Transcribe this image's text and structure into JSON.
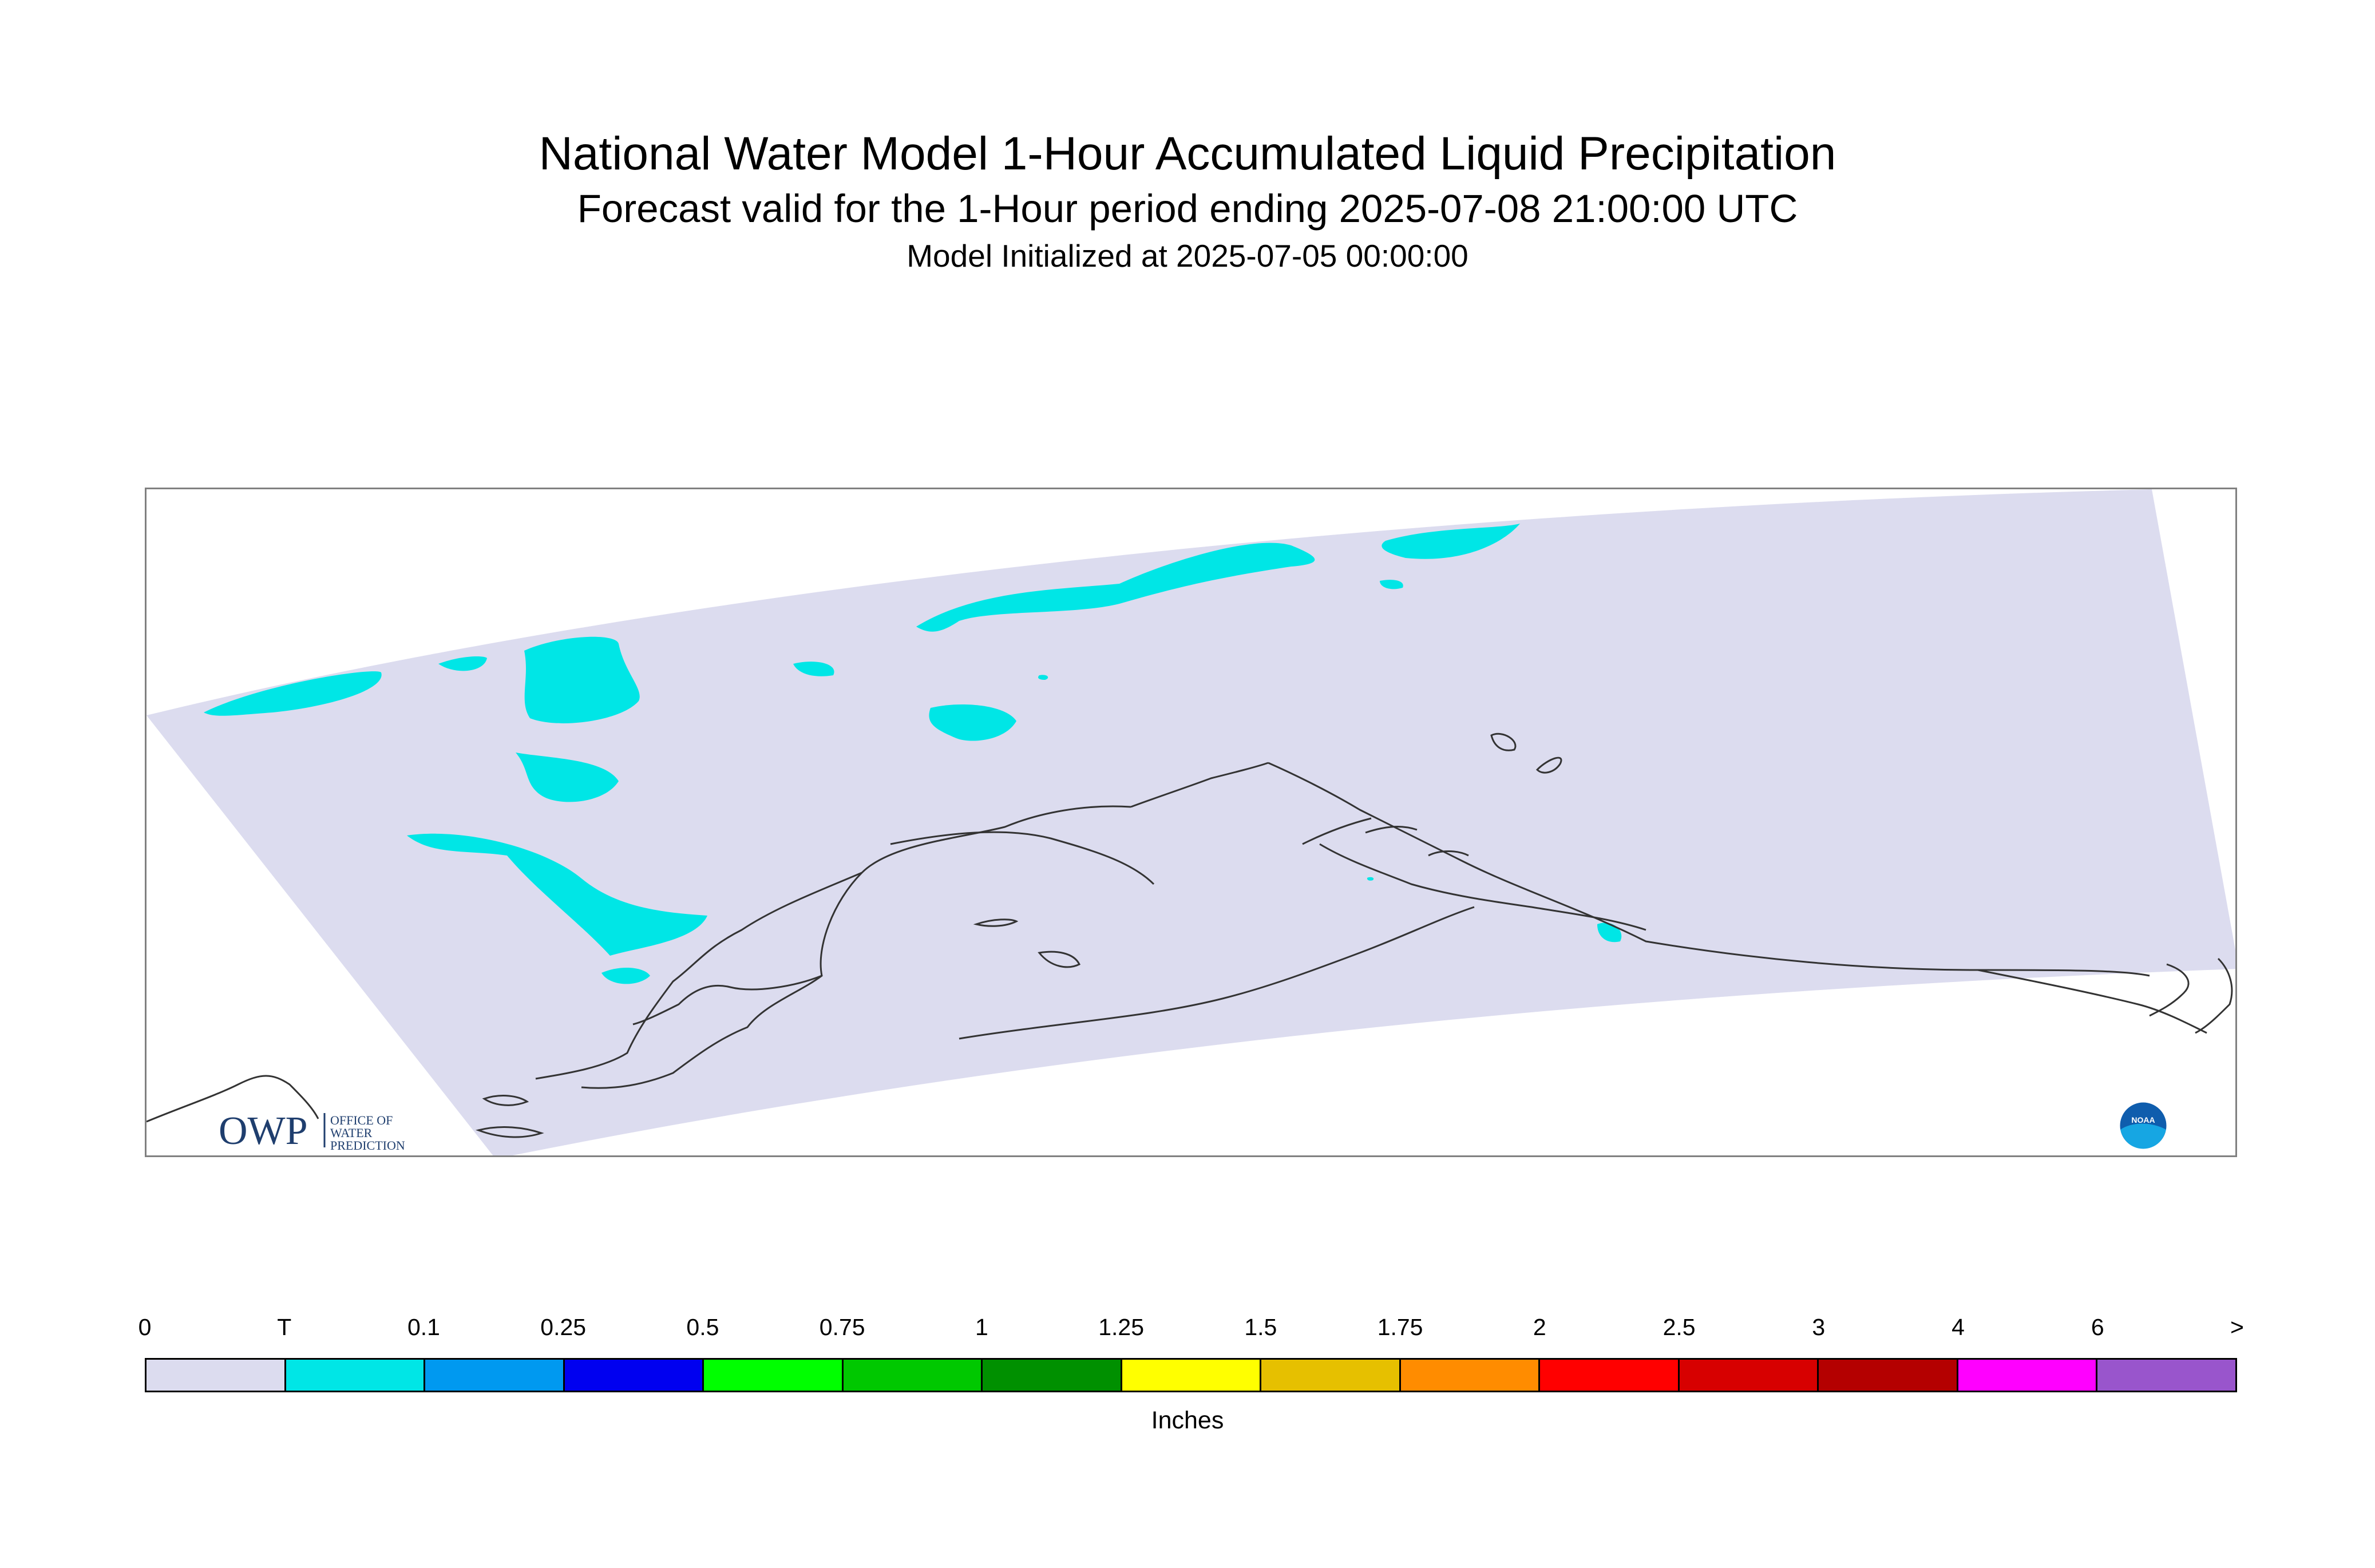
{
  "header": {
    "title": "National Water Model 1-Hour Accumulated Liquid Precipitation",
    "subtitle": "Forecast valid for the 1-Hour period ending 2025-07-08 21:00:00 UTC",
    "initialized": "Model Initialized at 2025-07-05 00:00:00"
  },
  "logos": {
    "owp_mark": "OWP",
    "owp_text_1": "OFFICE OF",
    "owp_text_2": "WATER",
    "owp_text_3": "PREDICTION",
    "noaa_text": "NOAA"
  },
  "colors": {
    "no_precip": "#dcdcef",
    "trace": "#00e6e6",
    "coastline": "#333333",
    "frame": "#808080"
  },
  "legend": {
    "unit": "Inches",
    "ticks": [
      "0",
      "T",
      "0.1",
      "0.25",
      "0.5",
      "0.75",
      "1",
      "1.25",
      "1.5",
      "1.75",
      "2",
      "2.5",
      "3",
      "4",
      "6",
      ">"
    ],
    "colors": [
      "#dcdcef",
      "#00e6e6",
      "#0099f0",
      "#0000f0",
      "#00ff00",
      "#00c800",
      "#009000",
      "#ffff00",
      "#e6c000",
      "#ff8c00",
      "#ff0000",
      "#d70000",
      "#b40000",
      "#ff00ff",
      "#9955cc"
    ]
  }
}
